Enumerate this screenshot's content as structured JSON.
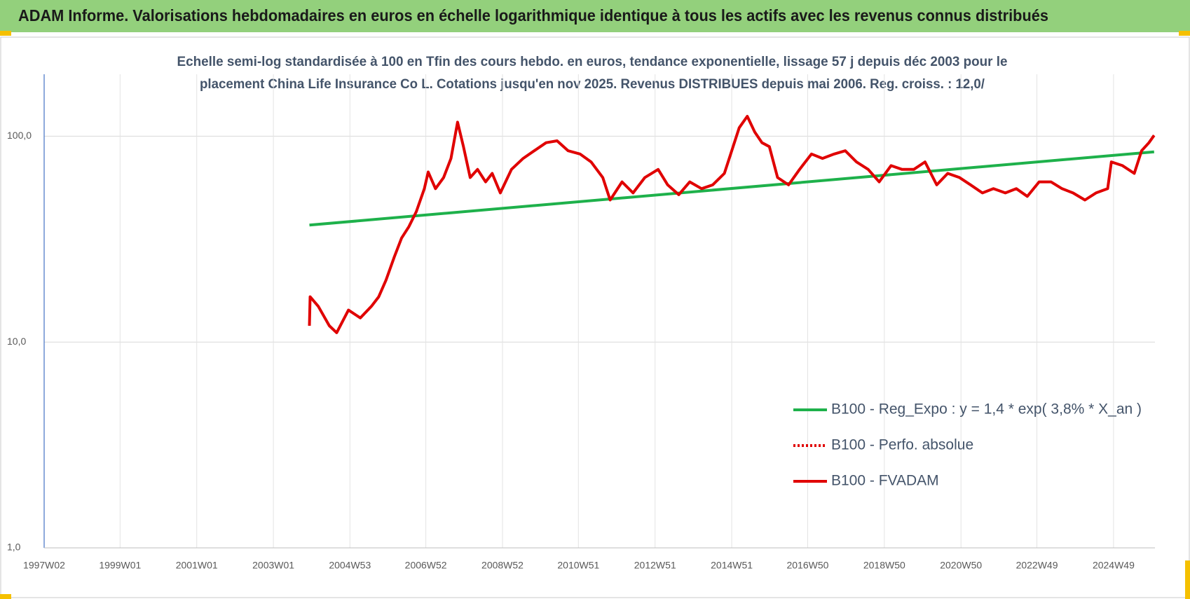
{
  "chart_data": {
    "type": "line",
    "title": "ADAM Informe. Valorisations hebdomadaires en euros en échelle logarithmique identique à tous les actifs avec les revenus connus distribués",
    "subtitle": [
      "Echelle semi-log standardisée à 100 en Tfin des cours hebdo. en euros, tendance exponentielle, lissage 57 j depuis déc 2003 pour le",
      "placement China Life Insurance Co L. Cotations jusqu'en nov 2025. Revenus DISTRIBUES depuis mai 2006. Reg. croiss. : 12,0/"
    ],
    "y_scale": "log",
    "grid": true,
    "ylim": [
      1,
      200
    ],
    "yticks": [
      {
        "value": 1,
        "label": "1,0"
      },
      {
        "value": 10,
        "label": "10,0"
      },
      {
        "value": 100,
        "label": "100,0"
      }
    ],
    "xlim": [
      "1997W02",
      "2026W01"
    ],
    "xticks": [
      "1997W02",
      "1999W01",
      "2001W01",
      "2003W01",
      "2004W53",
      "2006W52",
      "2008W52",
      "2010W51",
      "2012W51",
      "2014W51",
      "2016W50",
      "2018W50",
      "2020W50",
      "2022W49",
      "2024W49"
    ],
    "series": [
      {
        "name": "B100 - Reg_Expo : y = 1,4 * exp( 3,8% *  X_an )",
        "color": "#1eb14b",
        "dash": "solid",
        "x": [
          "2003W50",
          "2025W52"
        ],
        "values": [
          37,
          84
        ]
      },
      {
        "name": "B100 - Perfo. absolue",
        "color": "#e00000",
        "dash": "dotted"
      },
      {
        "name": "B100 - FVADAM",
        "color": "#e00000",
        "dash": "solid",
        "x": [
          "2003W50",
          "2003W51",
          "2004W10",
          "2004W25",
          "2004W35",
          "2004W51",
          "2005W15",
          "2005W30",
          "2005W40",
          "2005W50",
          "2006W09",
          "2006W19",
          "2006W29",
          "2006W39",
          "2006W50",
          "2007W03",
          "2007W13",
          "2007W24",
          "2007W34",
          "2007W43",
          "2007W51",
          "2008W08",
          "2008W18",
          "2008W29",
          "2008W38",
          "2008W49",
          "2009W12",
          "2009W28",
          "2009W43",
          "2010W07",
          "2010W22",
          "2010W37",
          "2011W01",
          "2011W16",
          "2011W32",
          "2011W42",
          "2012W06",
          "2012W21",
          "2012W37",
          "2013W03",
          "2013W16",
          "2013W31",
          "2013W46",
          "2014W10",
          "2014W25",
          "2014W41",
          "2014W51",
          "2015W09",
          "2015W20",
          "2015W30",
          "2015W40",
          "2015W50",
          "2016W09",
          "2016W24",
          "2016W39",
          "2017W03",
          "2017W18",
          "2017W34",
          "2017W49",
          "2018W12",
          "2018W28",
          "2018W43",
          "2019W07",
          "2019W22",
          "2019W38",
          "2020W01",
          "2020W17",
          "2020W32",
          "2020W48",
          "2021W11",
          "2021W27",
          "2021W42",
          "2022W06",
          "2022W21",
          "2022W36",
          "2022W52",
          "2023W16",
          "2023W31",
          "2023W46",
          "2024W10",
          "2024W25",
          "2024W41",
          "2024W46",
          "2025W09",
          "2025W25",
          "2025W35",
          "2025W45",
          "2025W52"
        ],
        "values": [
          12,
          16.6,
          14.9,
          12,
          11.1,
          14.3,
          13.1,
          14.9,
          16.6,
          20,
          25.9,
          32,
          36.4,
          43,
          55.6,
          67,
          55.6,
          63,
          78,
          117,
          89,
          63,
          69,
          60,
          66,
          53,
          69,
          78,
          85,
          93,
          95,
          85,
          82,
          75,
          63,
          49,
          60,
          53,
          63,
          69,
          58,
          52,
          60,
          55.6,
          58,
          66,
          85,
          110,
          125,
          105,
          93,
          89,
          63,
          58,
          69,
          82,
          78,
          82,
          85,
          75,
          69,
          60,
          72,
          69,
          69,
          75,
          58,
          66,
          63,
          58,
          53,
          55.6,
          53,
          55.6,
          51,
          60,
          60,
          55.6,
          53,
          49,
          53,
          55.6,
          75,
          72,
          66,
          85,
          93,
          101
        ]
      }
    ]
  }
}
